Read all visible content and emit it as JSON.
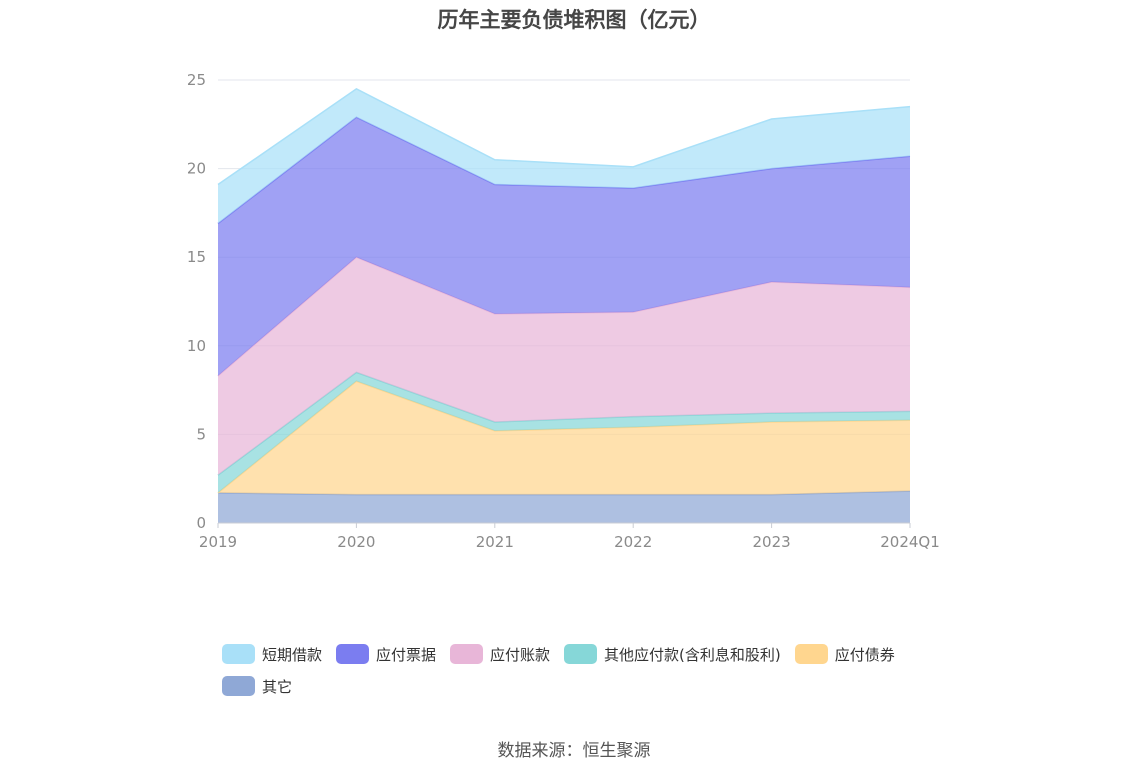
{
  "chart_data": {
    "type": "area",
    "stacked": true,
    "title": "历年主要负债堆积图（亿元）",
    "xlabel": "",
    "ylabel": "",
    "categories": [
      "2019",
      "2020",
      "2021",
      "2022",
      "2023",
      "2024Q1"
    ],
    "ylim": [
      0,
      25
    ],
    "yticks": [
      0,
      5,
      10,
      15,
      20,
      25
    ],
    "grid": true,
    "legend_position": "bottom",
    "series": [
      {
        "name": "其它",
        "color": "#8fa8d6",
        "values": [
          1.7,
          1.6,
          1.6,
          1.6,
          1.6,
          1.8
        ]
      },
      {
        "name": "应付债券",
        "color": "#ffd68f",
        "values": [
          0.0,
          6.4,
          3.6,
          3.8,
          4.1,
          4.0
        ]
      },
      {
        "name": "其他应付款(含利息和股利)",
        "color": "#86d7d8",
        "values": [
          1.0,
          0.5,
          0.5,
          0.6,
          0.5,
          0.5
        ]
      },
      {
        "name": "应付账款",
        "color": "#e8b6d8",
        "values": [
          5.6,
          6.5,
          6.1,
          5.9,
          7.4,
          7.0
        ]
      },
      {
        "name": "应付票据",
        "color": "#7b7df0",
        "values": [
          8.6,
          7.9,
          7.3,
          7.0,
          6.4,
          7.4
        ]
      },
      {
        "name": "短期借款",
        "color": "#a9e0f8",
        "values": [
          2.2,
          1.6,
          1.4,
          1.2,
          2.8,
          2.8
        ]
      }
    ]
  },
  "legend": {
    "rows": [
      [
        {
          "label": "短期借款",
          "color": "#a9e0f8"
        },
        {
          "label": "应付票据",
          "color": "#7b7df0"
        },
        {
          "label": "应付账款",
          "color": "#e8b6d8"
        },
        {
          "label": "其他应付款(含利息和股利)",
          "color": "#86d7d8"
        },
        {
          "label": "应付债券",
          "color": "#ffd68f"
        }
      ],
      [
        {
          "label": "其它",
          "color": "#8fa8d6"
        }
      ]
    ]
  },
  "source": "数据来源：恒生聚源"
}
